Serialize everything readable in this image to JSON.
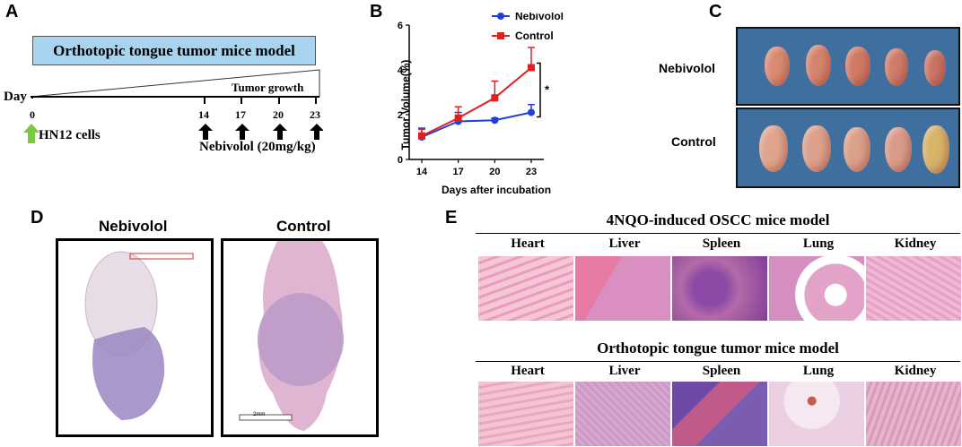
{
  "panels": {
    "a": "A",
    "b": "B",
    "c": "C",
    "d": "D",
    "e": "E"
  },
  "panel_a": {
    "model_title": "Orthotopic tongue tumor mice model",
    "growth_label": "Tumor growth",
    "day_label": "Day",
    "day_zero": "0",
    "days": [
      "14",
      "17",
      "20",
      "23"
    ],
    "cells_label": "HN12 cells",
    "treatment_label": "Nebivolol (20mg/kg)",
    "colors": {
      "model_box": "#a9d4ef",
      "green_arrow": "#7ac943",
      "black_arrow": "#000000"
    }
  },
  "chart_data": {
    "type": "line",
    "title": "",
    "xlabel": "Days after incubation",
    "ylabel": "Tumor Volume(%)",
    "categories": [
      "14",
      "17",
      "20",
      "23"
    ],
    "ylim": [
      0,
      6
    ],
    "yticks": [
      "0",
      "2",
      "4",
      "6"
    ],
    "series": [
      {
        "name": "Nebivolol",
        "color": "#1f3fdc",
        "marker": "circle",
        "values": [
          1.0,
          1.7,
          1.75,
          2.1
        ],
        "errors": [
          0.4,
          0.4,
          0.1,
          0.35
        ]
      },
      {
        "name": "Control",
        "color": "#e02020",
        "marker": "square",
        "values": [
          1.05,
          1.85,
          2.75,
          4.1
        ],
        "errors": [
          0.3,
          0.5,
          0.75,
          0.9
        ]
      }
    ],
    "significance": "*",
    "legend": "top-right"
  },
  "panel_c": {
    "row_labels": [
      "Nebivolol",
      "Control"
    ]
  },
  "panel_d": {
    "titles": [
      "Nebivolol",
      "Control"
    ],
    "scale_label": "2mm"
  },
  "panel_e": {
    "models": [
      {
        "title": "4NQO-induced OSCC mice model",
        "organs": [
          "Heart",
          "Liver",
          "Spleen",
          "Lung",
          "Kidney"
        ]
      },
      {
        "title": "Orthotopic tongue tumor mice model",
        "organs": [
          "Heart",
          "Liver",
          "Spleen",
          "Lung",
          "Kidney"
        ]
      }
    ]
  }
}
